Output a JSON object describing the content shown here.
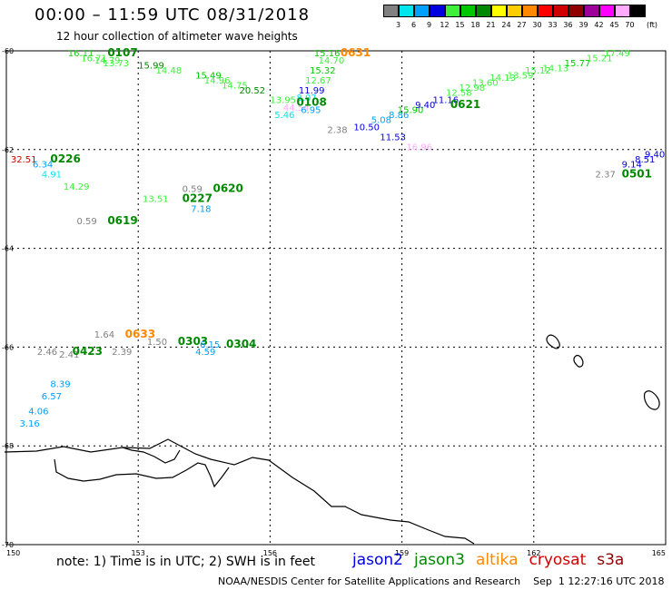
{
  "title": "00:00 – 11:59 UTC 08/31/2018",
  "subtitle": "12 hour collection of altimeter wave heights",
  "legend": {
    "unit": "(ft)",
    "bins": [
      {
        "label": "3",
        "color": "#808080"
      },
      {
        "label": "6",
        "color": "#00e5ee"
      },
      {
        "label": "9",
        "color": "#00a0ff"
      },
      {
        "label": "12",
        "color": "#0000e0"
      },
      {
        "label": "15",
        "color": "#3cf03c"
      },
      {
        "label": "18",
        "color": "#00c800"
      },
      {
        "label": "21",
        "color": "#008800"
      },
      {
        "label": "24",
        "color": "#ffff00"
      },
      {
        "label": "27",
        "color": "#ffcc00"
      },
      {
        "label": "30",
        "color": "#ff8800"
      },
      {
        "label": "33",
        "color": "#ff0000"
      },
      {
        "label": "36",
        "color": "#d00000"
      },
      {
        "label": "39",
        "color": "#900000"
      },
      {
        "label": "42",
        "color": "#a0009a"
      },
      {
        "label": "45",
        "color": "#ff00ff"
      },
      {
        "label": "70",
        "color": "#ffaaff"
      },
      {
        "label": "",
        "color": "#000000"
      }
    ]
  },
  "axes": {
    "lat_labels": [
      "-60",
      "-62",
      "-64",
      "-66",
      "-68",
      "-70"
    ],
    "lon_labels": [
      "150",
      "153",
      "156",
      "159",
      "162",
      "165"
    ]
  },
  "observations": [
    {
      "text": "16.11",
      "lon": 151.4,
      "lat": -60.0,
      "color": "#22c922",
      "time": false
    },
    {
      "text": "0107",
      "lon": 152.3,
      "lat": -60.0,
      "color": "#008800",
      "time": true
    },
    {
      "text": "16.71",
      "lon": 151.7,
      "lat": -60.1,
      "color": "#3cf03c",
      "time": false
    },
    {
      "text": "14.79",
      "lon": 152.0,
      "lat": -60.15,
      "color": "#3cf03c",
      "time": false
    },
    {
      "text": "13.73",
      "lon": 152.2,
      "lat": -60.2,
      "color": "#3cf03c",
      "time": false
    },
    {
      "text": "15.99",
      "lon": 153.0,
      "lat": -60.25,
      "color": "#008800",
      "time": false
    },
    {
      "text": "14.48",
      "lon": 153.4,
      "lat": -60.35,
      "color": "#3cf03c",
      "time": false
    },
    {
      "text": "15.49",
      "lon": 154.3,
      "lat": -60.45,
      "color": "#00c800",
      "time": false
    },
    {
      "text": "14.96",
      "lon": 154.5,
      "lat": -60.55,
      "color": "#3cf03c",
      "time": false
    },
    {
      "text": "14.75",
      "lon": 154.9,
      "lat": -60.65,
      "color": "#3cf03c",
      "time": false
    },
    {
      "text": "20.52",
      "lon": 155.3,
      "lat": -60.75,
      "color": "#008800",
      "time": false
    },
    {
      "text": "13.95",
      "lon": 156.0,
      "lat": -60.95,
      "color": "#3cf03c",
      "time": false
    },
    {
      "text": "44.54",
      "lon": 156.3,
      "lat": -61.1,
      "color": "#ffaaff",
      "time": false
    },
    {
      "text": "5.46",
      "lon": 156.1,
      "lat": -61.25,
      "color": "#00e5ee",
      "time": false
    },
    {
      "text": "15.16",
      "lon": 157.0,
      "lat": -60.0,
      "color": "#00c800",
      "time": false
    },
    {
      "text": "0631",
      "lon": 157.6,
      "lat": -60.0,
      "color": "#ff8800",
      "time": true
    },
    {
      "text": "14.70",
      "lon": 157.1,
      "lat": -60.15,
      "color": "#3cf03c",
      "time": false
    },
    {
      "text": "15.32",
      "lon": 156.9,
      "lat": -60.35,
      "color": "#00c800",
      "time": false
    },
    {
      "text": "12.67",
      "lon": 156.8,
      "lat": -60.55,
      "color": "#3cf03c",
      "time": false
    },
    {
      "text": "11.99",
      "lon": 156.65,
      "lat": -60.75,
      "color": "#0000e0",
      "time": false
    },
    {
      "text": "8.07",
      "lon": 156.6,
      "lat": -60.9,
      "color": "#00e5ee",
      "time": false
    },
    {
      "text": "0108",
      "lon": 156.6,
      "lat": -61.0,
      "color": "#008800",
      "time": true
    },
    {
      "text": "6.95",
      "lon": 156.7,
      "lat": -61.15,
      "color": "#00a0ff",
      "time": false
    },
    {
      "text": "2.38",
      "lon": 157.3,
      "lat": -61.55,
      "color": "#808080",
      "time": false
    },
    {
      "text": "10.50",
      "lon": 157.9,
      "lat": -61.5,
      "color": "#0000e0",
      "time": false
    },
    {
      "text": "11.53",
      "lon": 158.5,
      "lat": -61.7,
      "color": "#0000e0",
      "time": false
    },
    {
      "text": "5.08",
      "lon": 158.3,
      "lat": -61.35,
      "color": "#00a0ff",
      "time": false
    },
    {
      "text": "16.96",
      "lon": 159.1,
      "lat": -61.9,
      "color": "#ffaaff",
      "time": false
    },
    {
      "text": "8.86",
      "lon": 158.7,
      "lat": -61.25,
      "color": "#00a0ff",
      "time": false
    },
    {
      "text": "15.90",
      "lon": 158.9,
      "lat": -61.15,
      "color": "#00c800",
      "time": false
    },
    {
      "text": "9.40",
      "lon": 159.3,
      "lat": -61.05,
      "color": "#0000e0",
      "time": false
    },
    {
      "text": "11.16",
      "lon": 159.7,
      "lat": -60.95,
      "color": "#0000e0",
      "time": false
    },
    {
      "text": "0621",
      "lon": 160.1,
      "lat": -61.05,
      "color": "#008800",
      "time": true
    },
    {
      "text": "12.58",
      "lon": 160.0,
      "lat": -60.8,
      "color": "#3cf03c",
      "time": false
    },
    {
      "text": "12.98",
      "lon": 160.3,
      "lat": -60.7,
      "color": "#3cf03c",
      "time": false
    },
    {
      "text": "13.60",
      "lon": 160.6,
      "lat": -60.6,
      "color": "#3cf03c",
      "time": false
    },
    {
      "text": "14.13",
      "lon": 161.0,
      "lat": -60.5,
      "color": "#3cf03c",
      "time": false
    },
    {
      "text": "13.59",
      "lon": 161.4,
      "lat": -60.45,
      "color": "#3cf03c",
      "time": false
    },
    {
      "text": "15.12",
      "lon": 161.8,
      "lat": -60.35,
      "color": "#3cf03c",
      "time": false
    },
    {
      "text": "14.13",
      "lon": 162.2,
      "lat": -60.3,
      "color": "#3cf03c",
      "time": false
    },
    {
      "text": "15.77",
      "lon": 162.7,
      "lat": -60.2,
      "color": "#00c800",
      "time": false
    },
    {
      "text": "15.21",
      "lon": 163.2,
      "lat": -60.1,
      "color": "#3cf03c",
      "time": false
    },
    {
      "text": "17.49",
      "lon": 163.6,
      "lat": -60.0,
      "color": "#3cf03c",
      "time": false
    },
    {
      "text": "32.51",
      "lon": 150.1,
      "lat": -62.15,
      "color": "#d00000",
      "time": false
    },
    {
      "text": "0226",
      "lon": 151.0,
      "lat": -62.15,
      "color": "#008800",
      "time": true
    },
    {
      "text": "6.34",
      "lon": 150.6,
      "lat": -62.25,
      "color": "#00a0ff",
      "time": false
    },
    {
      "text": "4.91",
      "lon": 150.8,
      "lat": -62.45,
      "color": "#00e5ee",
      "time": false
    },
    {
      "text": "14.29",
      "lon": 151.3,
      "lat": -62.7,
      "color": "#3cf03c",
      "time": false
    },
    {
      "text": "0.59",
      "lon": 151.6,
      "lat": -63.4,
      "color": "#808080",
      "time": false
    },
    {
      "text": "0619",
      "lon": 152.3,
      "lat": -63.4,
      "color": "#008800",
      "time": true
    },
    {
      "text": "0.59",
      "lon": 154.0,
      "lat": -62.75,
      "color": "#808080",
      "time": false
    },
    {
      "text": "0620",
      "lon": 154.7,
      "lat": -62.75,
      "color": "#008800",
      "time": true
    },
    {
      "text": "13.51",
      "lon": 153.1,
      "lat": -62.95,
      "color": "#3cf03c",
      "time": false
    },
    {
      "text": "0227",
      "lon": 154.0,
      "lat": -62.95,
      "color": "#008800",
      "time": true
    },
    {
      "text": "7.18",
      "lon": 154.2,
      "lat": -63.15,
      "color": "#00a0ff",
      "time": false
    },
    {
      "text": "2.37",
      "lon": 163.4,
      "lat": -62.45,
      "color": "#808080",
      "time": false
    },
    {
      "text": "0501",
      "lon": 164.0,
      "lat": -62.45,
      "color": "#008800",
      "time": true
    },
    {
      "text": "9.14",
      "lon": 164.0,
      "lat": -62.25,
      "color": "#0000e0",
      "time": false
    },
    {
      "text": "8.51",
      "lon": 164.3,
      "lat": -62.15,
      "color": "#0000e0",
      "time": false
    },
    {
      "text": "9.40",
      "lon": 164.6,
      "lat": -62.05,
      "color": "#0000e0",
      "time": false
    },
    {
      "text": "1.64",
      "lon": 152.0,
      "lat": -65.7,
      "color": "#808080",
      "time": false
    },
    {
      "text": "0633",
      "lon": 152.7,
      "lat": -65.7,
      "color": "#ff8800",
      "time": true
    },
    {
      "text": "1.50",
      "lon": 153.2,
      "lat": -65.85,
      "color": "#808080",
      "time": false
    },
    {
      "text": "0303",
      "lon": 153.9,
      "lat": -65.85,
      "color": "#008800",
      "time": true
    },
    {
      "text": "6.15",
      "lon": 154.4,
      "lat": -65.9,
      "color": "#00a0ff",
      "time": false
    },
    {
      "text": "0304",
      "lon": 155.0,
      "lat": -65.9,
      "color": "#008800",
      "time": true
    },
    {
      "text": "4.59",
      "lon": 154.3,
      "lat": -66.05,
      "color": "#00a0ff",
      "time": false
    },
    {
      "text": "2.46",
      "lon": 150.7,
      "lat": -66.05,
      "color": "#808080",
      "time": false
    },
    {
      "text": "2.41",
      "lon": 151.2,
      "lat": -66.1,
      "color": "#808080",
      "time": false
    },
    {
      "text": "0423",
      "lon": 151.5,
      "lat": -66.05,
      "color": "#008800",
      "time": true
    },
    {
      "text": "2.39",
      "lon": 152.4,
      "lat": -66.05,
      "color": "#808080",
      "time": false
    },
    {
      "text": "8.39",
      "lon": 151.0,
      "lat": -66.7,
      "color": "#00a0ff",
      "time": false
    },
    {
      "text": "6.57",
      "lon": 150.8,
      "lat": -66.95,
      "color": "#00a0ff",
      "time": false
    },
    {
      "text": "4.06",
      "lon": 150.5,
      "lat": -67.25,
      "color": "#00a0ff",
      "time": false
    },
    {
      "text": "3.16",
      "lon": 150.3,
      "lat": -67.5,
      "color": "#00a0ff",
      "time": false
    }
  ],
  "footnote": "note: 1) Time is in UTC; 2) SWH is in feet",
  "satellites": [
    {
      "name": "jason2",
      "color": "#0000e0"
    },
    {
      "name": "jason3",
      "color": "#008800"
    },
    {
      "name": "altika",
      "color": "#ff8800"
    },
    {
      "name": "cryosat",
      "color": "#d00000"
    },
    {
      "name": "s3a",
      "color": "#900000"
    }
  ],
  "credit": "NOAA/NESDIS Center for Satellite Applications and Research    Sep  1 12:27:16 UTC 2018"
}
